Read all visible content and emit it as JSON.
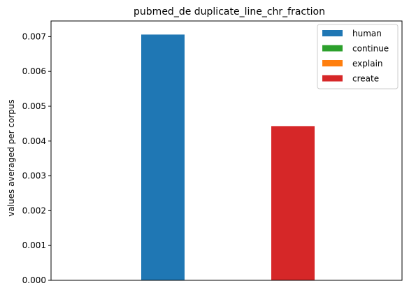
{
  "chart_data": {
    "type": "bar",
    "title": "pubmed_de duplicate_line_chr_fraction",
    "xlabel": "",
    "ylabel": "values averaged per corpus",
    "ylim": [
      0,
      0.00745
    ],
    "yticks": [
      0.0,
      0.001,
      0.002,
      0.003,
      0.004,
      0.005,
      0.006,
      0.007
    ],
    "ytick_labels": [
      "0.000",
      "0.001",
      "0.002",
      "0.003",
      "0.004",
      "0.005",
      "0.006",
      "0.007"
    ],
    "grid": false,
    "legend_position": "top-right",
    "series": [
      {
        "name": "human",
        "value": 0.00706,
        "color": "#1f77b4"
      },
      {
        "name": "continue",
        "value": 0.0,
        "color": "#2ca02c"
      },
      {
        "name": "explain",
        "value": 0.0,
        "color": "#ff7f0e"
      },
      {
        "name": "create",
        "value": 0.00443,
        "color": "#d62728"
      }
    ]
  }
}
